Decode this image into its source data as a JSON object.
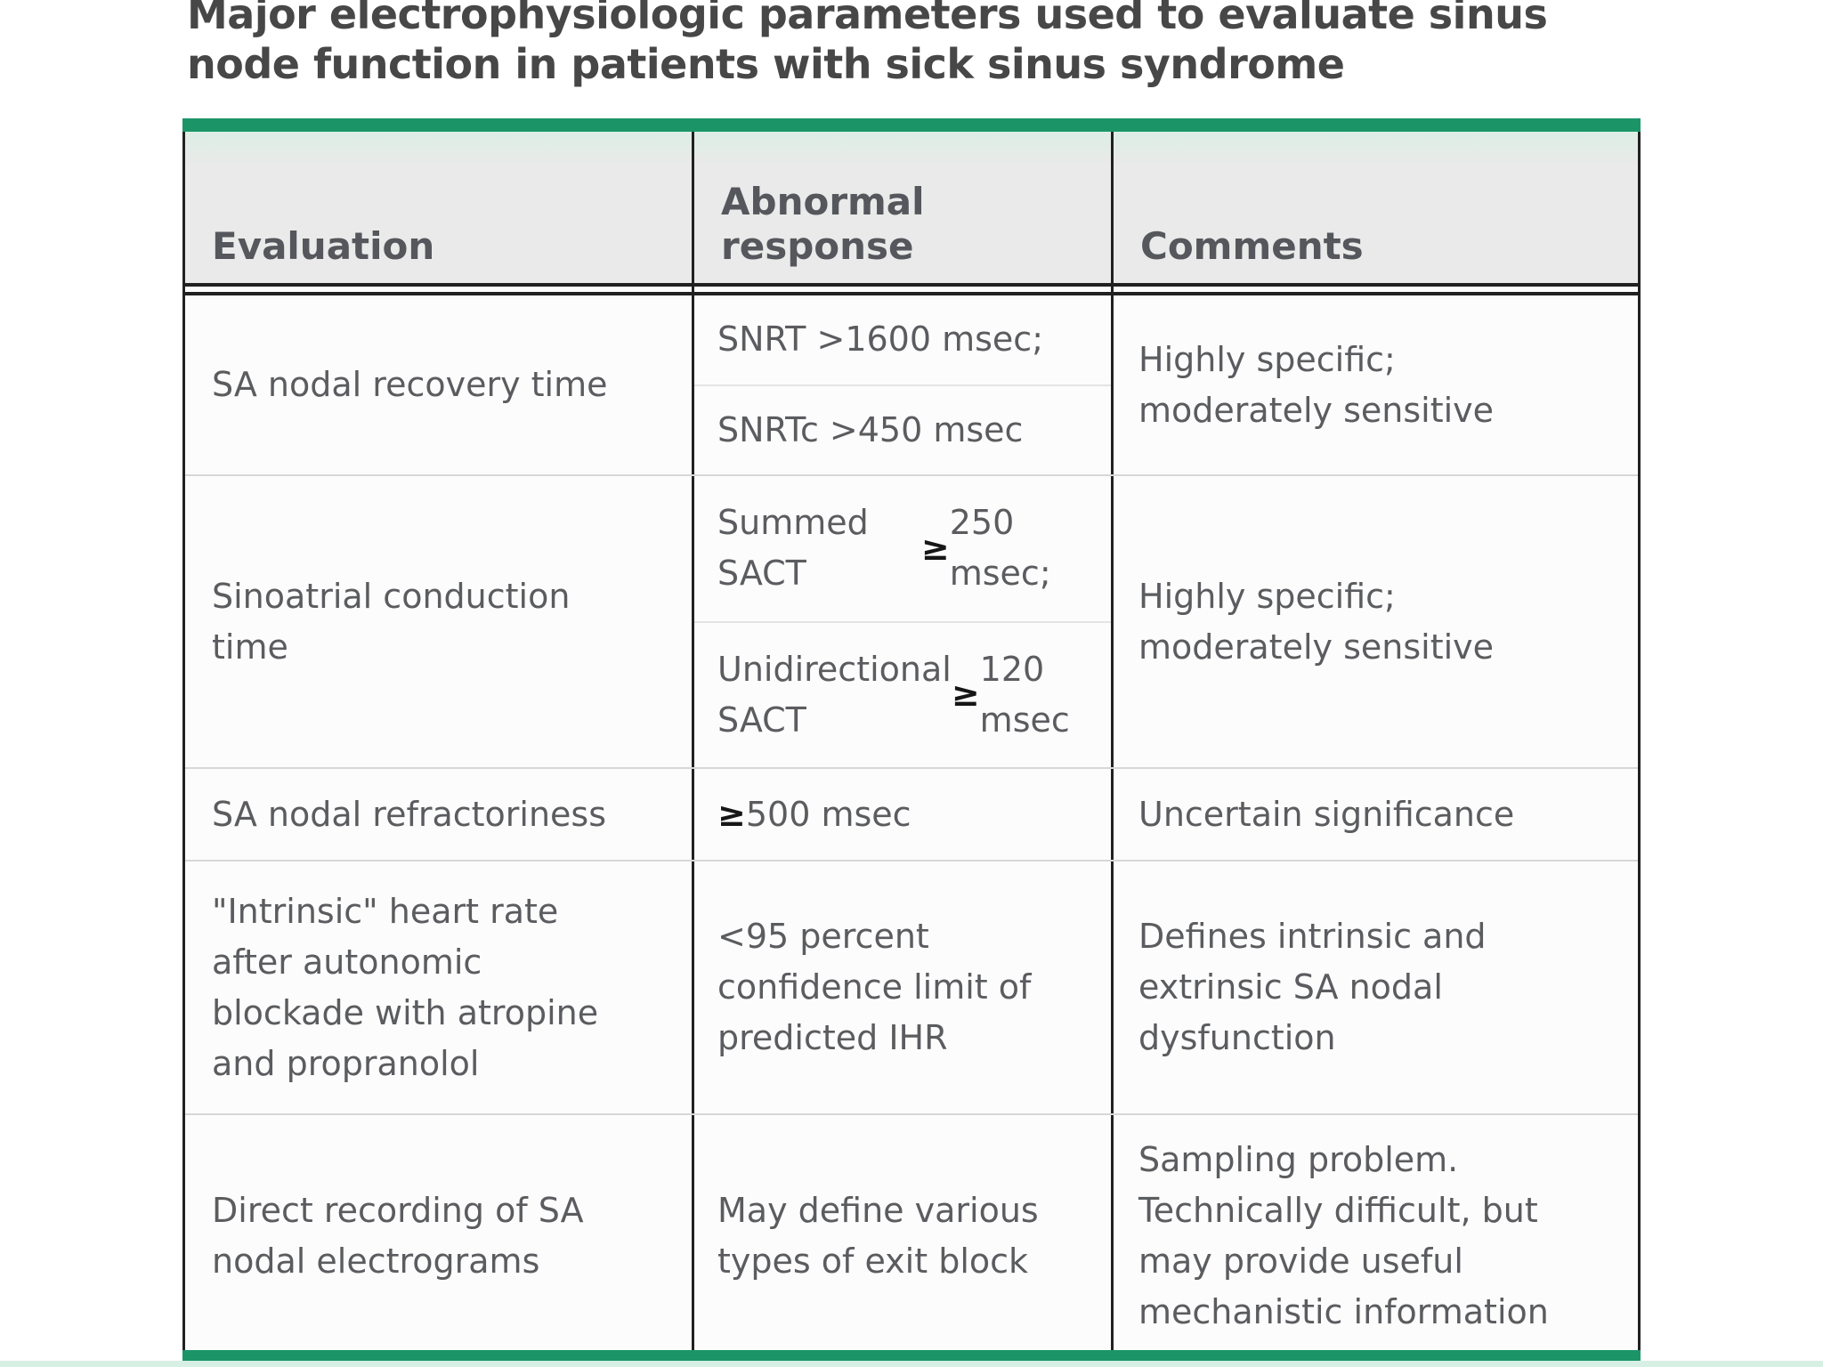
{
  "title": "Major electrophysiologic parameters used to evaluate sinus\nnode function in patients with sick sinus syndrome",
  "colors": {
    "accent_green": "#1b9568",
    "header_background": "#e9eae9",
    "body_background": "#fcfcfc",
    "border_black": "#212121",
    "row_divider": "#d7d7d7",
    "body_text": "#5b5c5f",
    "mint_strip": "#d7f0e4"
  },
  "table": {
    "columns": [
      "Evaluation",
      "Abnormal\nresponse",
      "Comments"
    ],
    "rows": [
      {
        "evaluation": "SA nodal recovery time",
        "responses": [
          "SNRT >1600 msec;",
          "SNRTc >450 msec"
        ],
        "comment": "Highly specific;\nmoderately sensitive"
      },
      {
        "evaluation": "Sinoatrial conduction\ntime",
        "responses": [
          "Summed SACT\n≥250 msec;",
          "Unidirectional\nSACT ≥120 msec"
        ],
        "comment": "Highly specific;\nmoderately sensitive"
      },
      {
        "evaluation": "SA nodal refractoriness",
        "responses": [
          "≥500 msec"
        ],
        "comment": "Uncertain significance"
      },
      {
        "evaluation": "\"Intrinsic\" heart rate\nafter autonomic\nblockade with atropine\nand propranolol",
        "responses": [
          "<95 percent\nconfidence limit of\npredicted IHR"
        ],
        "comment": "Defines intrinsic and\nextrinsic SA nodal\ndysfunction"
      },
      {
        "evaluation": "Direct recording of SA\nnodal electrograms",
        "responses": [
          "May define various\ntypes of exit block"
        ],
        "comment": "Sampling problem.\nTechnically difficult, but\nmay provide useful\nmechanistic information"
      }
    ]
  }
}
